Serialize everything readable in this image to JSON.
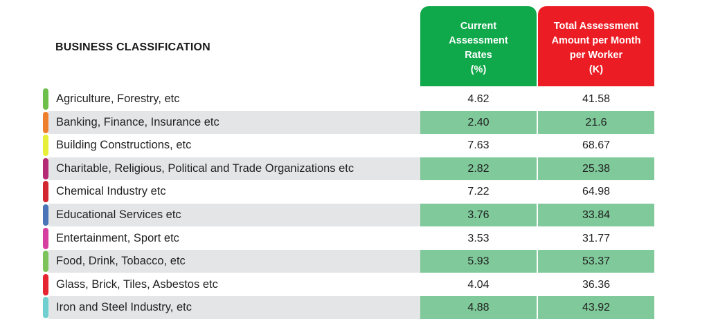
{
  "table": {
    "heading": "BUSINESS CLASSIFICATION",
    "col1_header": [
      "Current",
      "Assessment",
      "Rates",
      "(%)"
    ],
    "col2_header": [
      "Total Assessment",
      "Amount per Month",
      "per Worker",
      "(K)"
    ],
    "colors": {
      "col1_header_bg": "#0fa84a",
      "col2_header_bg": "#ec1c24",
      "shaded_value_bg": "#7fc99a",
      "shaded_label_bg": "#e4e5e7"
    },
    "rows": [
      {
        "label": "Agriculture, Forestry, etc",
        "rate": "4.62",
        "amount": "41.58",
        "stripe": "#6cc04a"
      },
      {
        "label": "Banking, Finance, Insurance etc",
        "rate": "2.40",
        "amount": "21.6",
        "stripe": "#ee7f2d"
      },
      {
        "label": "Building Constructions, etc",
        "rate": "7.63",
        "amount": "68.67",
        "stripe": "#e8ef3a"
      },
      {
        "label": "Charitable, Religious, Political and Trade Organizations etc",
        "rate": "2.82",
        "amount": "25.38",
        "stripe": "#b52a74"
      },
      {
        "label": "Chemical Industry etc",
        "rate": "7.22",
        "amount": "64.98",
        "stripe": "#d22630"
      },
      {
        "label": "Educational Services etc",
        "rate": "3.76",
        "amount": "33.84",
        "stripe": "#4a73b8"
      },
      {
        "label": "Entertainment, Sport etc",
        "rate": "3.53",
        "amount": "31.77",
        "stripe": "#d63fa0"
      },
      {
        "label": "Food, Drink, Tobacco, etc",
        "rate": "5.93",
        "amount": "53.37",
        "stripe": "#7cc359"
      },
      {
        "label": "Glass, Brick, Tiles, Asbestos etc",
        "rate": "4.04",
        "amount": "36.36",
        "stripe": "#e52631"
      },
      {
        "label": "Iron and Steel Industry, etc",
        "rate": "4.88",
        "amount": "43.92",
        "stripe": "#6fd0cf"
      }
    ]
  }
}
